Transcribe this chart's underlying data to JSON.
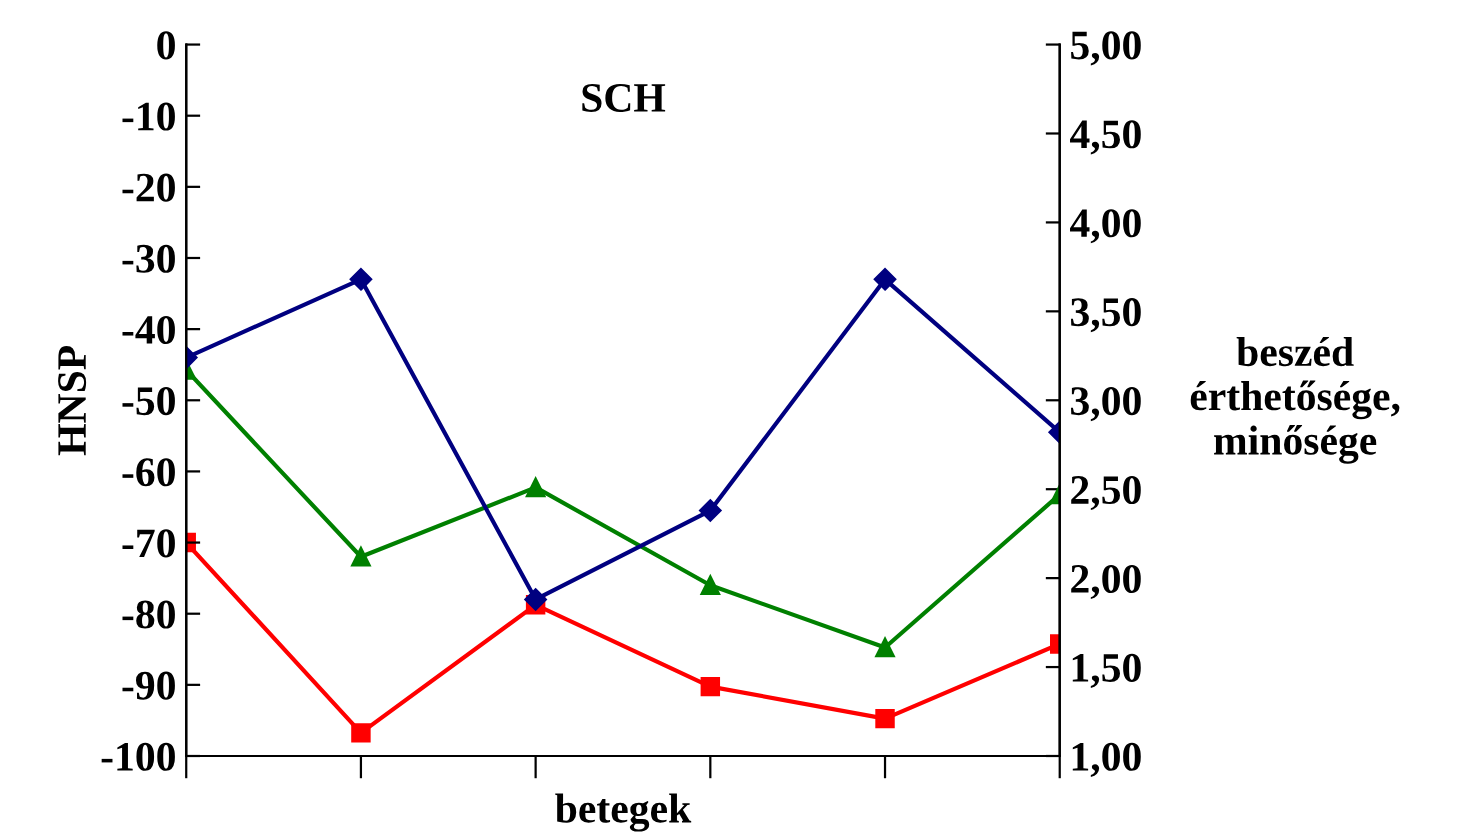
{
  "chart_data": {
    "type": "line",
    "title": "SCH",
    "xlabel": "betegek",
    "ylabel": "HNSP",
    "y2label": "beszéd\nérthetősége,\nminősége",
    "categories": [
      null,
      null,
      null,
      null,
      null,
      null
    ],
    "series": [
      {
        "color": "#000080",
        "marker": "diamond",
        "values": [
          -44,
          -33,
          -78,
          -65.5,
          -33,
          -54.5
        ]
      },
      {
        "color": "#008000",
        "marker": "triangle",
        "axis": "y2",
        "values": [
          3.17,
          2.12,
          2.51,
          1.96,
          1.61,
          2.47
        ]
      },
      {
        "color": "#ff0000",
        "marker": "square",
        "axis": "y2",
        "values": [
          2.2,
          1.13,
          1.85,
          1.39,
          1.21,
          1.63
        ]
      }
    ],
    "ylim": [
      -100,
      0
    ],
    "yticks": [
      -100,
      -90,
      -80,
      -70,
      -60,
      -50,
      -40,
      -30,
      -20,
      -10,
      0
    ],
    "y2lim": [
      1,
      5
    ],
    "y2ticks": [
      {
        "value": 1,
        "label": "1,00"
      },
      {
        "value": 1.5,
        "label": "1,50"
      },
      {
        "value": 2,
        "label": "2,00"
      },
      {
        "value": 2.5,
        "label": "2,50"
      },
      {
        "value": 3,
        "label": "3,00"
      },
      {
        "value": 3.5,
        "label": "3,50"
      },
      {
        "value": 4,
        "label": "4,00"
      },
      {
        "value": 4.5,
        "label": "4,50"
      },
      {
        "value": 5,
        "label": "5,00"
      }
    ],
    "grid": false,
    "legend": false
  }
}
